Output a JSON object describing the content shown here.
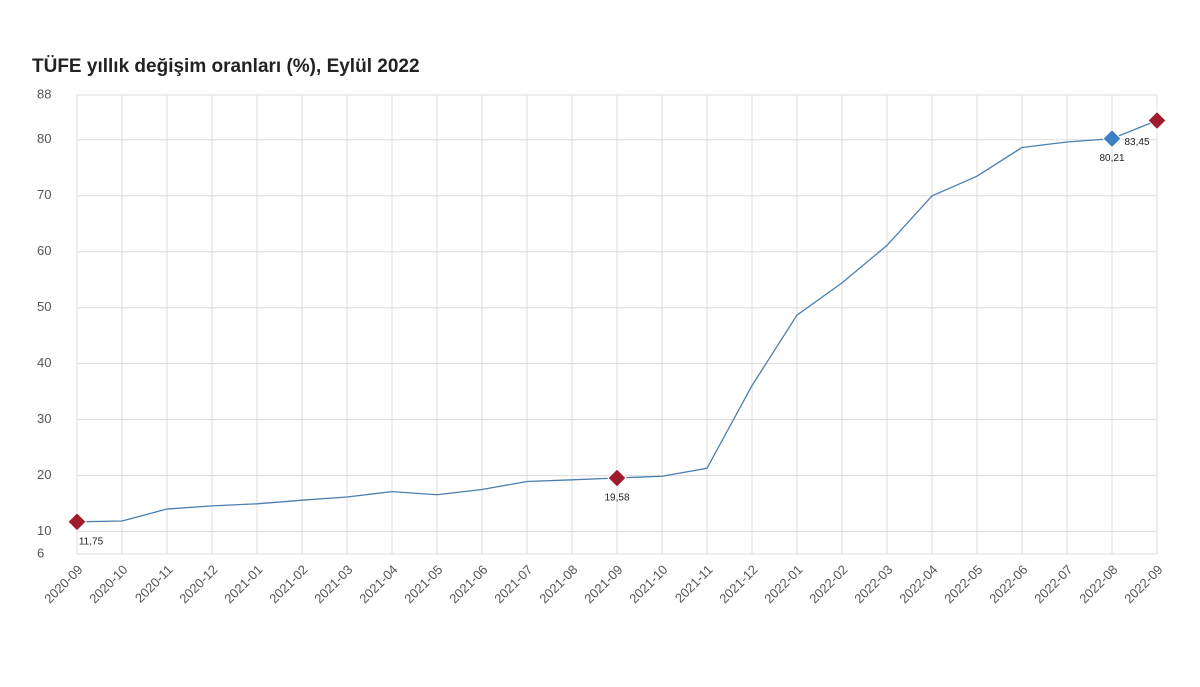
{
  "chart_data": {
    "type": "line",
    "title": "TÜFE yıllık değişim oranları (%), Eylül 2022",
    "categories": [
      "2020-09",
      "2020-10",
      "2020-11",
      "2020-12",
      "2021-01",
      "2021-02",
      "2021-03",
      "2021-04",
      "2021-05",
      "2021-06",
      "2021-07",
      "2021-08",
      "2021-09",
      "2021-10",
      "2021-11",
      "2021-12",
      "2022-01",
      "2022-02",
      "2022-03",
      "2022-04",
      "2022-05",
      "2022-06",
      "2022-07",
      "2022-08",
      "2022-09"
    ],
    "series": [
      {
        "color": "#4a7fb0",
        "values": [
          11.75,
          11.89,
          14.03,
          14.6,
          14.97,
          15.61,
          16.19,
          17.14,
          16.59,
          17.53,
          18.95,
          19.25,
          19.58,
          19.89,
          21.31,
          36.08,
          48.69,
          54.44,
          61.14,
          69.97,
          73.5,
          78.62,
          79.6,
          80.21,
          83.45
        ],
        "value_labels": [
          "11,75",
          null,
          null,
          null,
          null,
          null,
          null,
          null,
          null,
          null,
          null,
          null,
          "19,58",
          null,
          null,
          null,
          null,
          null,
          null,
          null,
          null,
          null,
          null,
          "80,21",
          "83,45"
        ],
        "marker_colors": [
          "#a01c2c",
          null,
          null,
          null,
          null,
          null,
          null,
          null,
          null,
          null,
          null,
          null,
          "#a01c2c",
          null,
          null,
          null,
          null,
          null,
          null,
          null,
          null,
          null,
          null,
          "#3b7fc4",
          "#a01c2c"
        ]
      }
    ],
    "ylim": [
      6,
      88
    ],
    "yticks": [
      6,
      10,
      20,
      30,
      40,
      50,
      60,
      70,
      80,
      88
    ],
    "grid": true
  }
}
